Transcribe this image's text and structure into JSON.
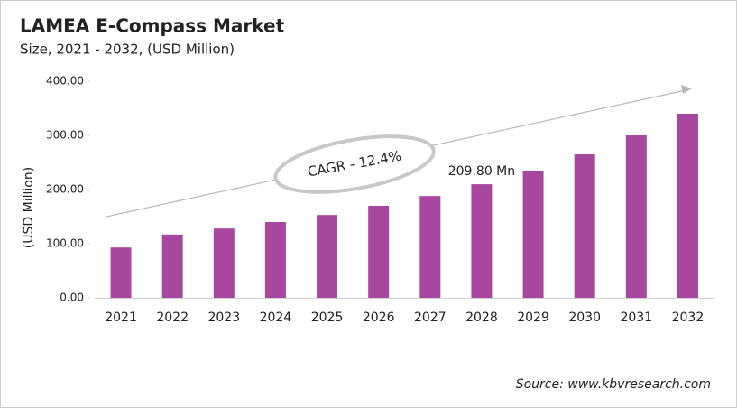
{
  "chart_data": {
    "type": "bar",
    "title": "LAMEA E-Compass Market",
    "subtitle": "Size, 2021 - 2032, (USD Million)",
    "y_label": "(USD Million)",
    "categories": [
      "2021",
      "2022",
      "2023",
      "2024",
      "2025",
      "2026",
      "2027",
      "2028",
      "2029",
      "2030",
      "2031",
      "2032"
    ],
    "values": [
      93,
      117,
      128,
      140,
      153,
      170,
      188,
      209.8,
      235,
      265,
      300,
      340
    ],
    "value_labels": [
      null,
      null,
      null,
      null,
      null,
      null,
      null,
      "209.80 Mn",
      null,
      null,
      null,
      null
    ],
    "color": "#a8479e",
    "ylim": [
      0,
      400
    ],
    "yticks": [
      {
        "value": 0,
        "label": "0.00"
      },
      {
        "value": 100,
        "label": "100.00"
      },
      {
        "value": 200,
        "label": "200.00"
      },
      {
        "value": 300,
        "label": "300.00"
      },
      {
        "value": 400,
        "label": "400.00"
      }
    ],
    "grid": false,
    "annotation": "CAGR - 12.4%",
    "source": "Source: www.kbvresearch.com"
  }
}
